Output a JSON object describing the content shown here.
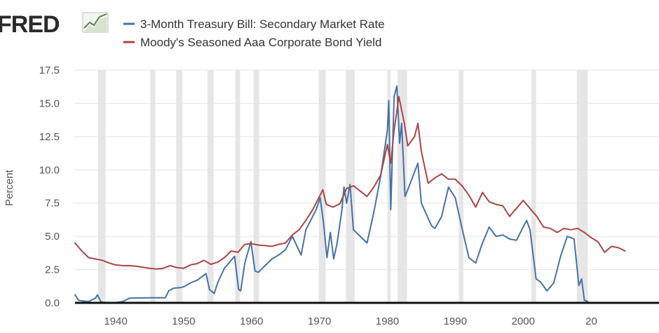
{
  "header": {
    "logo_text": "FRED"
  },
  "chart_data": {
    "type": "line",
    "ylabel": "Percent",
    "ylim": [
      0,
      17.5
    ],
    "xlim": [
      1934,
      2020
    ],
    "y_ticks": [
      "0.0",
      "2.5",
      "5.0",
      "7.5",
      "10.0",
      "12.5",
      "15.0",
      "17.5"
    ],
    "x_ticks": [
      "1940",
      "1950",
      "1960",
      "1970",
      "1980",
      "1990",
      "2000",
      "20"
    ],
    "grid": "horizontal",
    "recessions": [
      [
        1937.4,
        1938.5
      ],
      [
        1945.1,
        1945.8
      ],
      [
        1948.9,
        1949.8
      ],
      [
        1953.5,
        1954.4
      ],
      [
        1957.6,
        1958.3
      ],
      [
        1960.3,
        1961.1
      ],
      [
        1969.9,
        1970.9
      ],
      [
        1973.9,
        1975.2
      ],
      [
        1980.0,
        1980.5
      ],
      [
        1981.5,
        1982.9
      ],
      [
        1990.5,
        1991.2
      ],
      [
        2001.2,
        2001.9
      ],
      [
        2007.9,
        2009.5
      ]
    ],
    "series": [
      {
        "name": "3-Month Treasury Bill: Secondary Market Rate",
        "color": "#4572a7",
        "points": [
          [
            1934.0,
            0.6
          ],
          [
            1934.5,
            0.2
          ],
          [
            1935,
            0.15
          ],
          [
            1936,
            0.1
          ],
          [
            1937.0,
            0.35
          ],
          [
            1937.3,
            0.6
          ],
          [
            1937.8,
            0.1
          ],
          [
            1938,
            0.05
          ],
          [
            1939,
            0.02
          ],
          [
            1940,
            0.02
          ],
          [
            1941,
            0.1
          ],
          [
            1942,
            0.35
          ],
          [
            1943,
            0.37
          ],
          [
            1945,
            0.38
          ],
          [
            1947.3,
            0.38
          ],
          [
            1947.8,
            0.9
          ],
          [
            1948.5,
            1.1
          ],
          [
            1949.5,
            1.15
          ],
          [
            1950,
            1.2
          ],
          [
            1951,
            1.5
          ],
          [
            1952,
            1.7
          ],
          [
            1953.3,
            2.2
          ],
          [
            1953.8,
            1.0
          ],
          [
            1954.5,
            0.7
          ],
          [
            1955,
            1.5
          ],
          [
            1956,
            2.6
          ],
          [
            1957.5,
            3.5
          ],
          [
            1958.1,
            1.0
          ],
          [
            1958.4,
            0.9
          ],
          [
            1959.0,
            3.0
          ],
          [
            1959.9,
            4.6
          ],
          [
            1960.5,
            2.4
          ],
          [
            1961,
            2.3
          ],
          [
            1962,
            2.8
          ],
          [
            1963,
            3.3
          ],
          [
            1964,
            3.6
          ],
          [
            1965,
            4.0
          ],
          [
            1966,
            5.0
          ],
          [
            1967.3,
            3.6
          ],
          [
            1968,
            5.5
          ],
          [
            1969.5,
            7.0
          ],
          [
            1970.1,
            7.9
          ],
          [
            1970.6,
            6.0
          ],
          [
            1971.1,
            3.4
          ],
          [
            1971.6,
            5.3
          ],
          [
            1972.1,
            3.3
          ],
          [
            1972.6,
            4.5
          ],
          [
            1973.3,
            7.0
          ],
          [
            1973.6,
            8.7
          ],
          [
            1974.0,
            7.5
          ],
          [
            1974.5,
            8.9
          ],
          [
            1975.0,
            5.5
          ],
          [
            1976,
            5.0
          ],
          [
            1977,
            4.5
          ],
          [
            1978,
            6.8
          ],
          [
            1979,
            9.5
          ],
          [
            1980.0,
            13.0
          ],
          [
            1980.2,
            15.2
          ],
          [
            1980.5,
            7.0
          ],
          [
            1980.9,
            14.0
          ],
          [
            1981.0,
            15.5
          ],
          [
            1981.4,
            16.3
          ],
          [
            1981.8,
            12.0
          ],
          [
            1982.1,
            13.5
          ],
          [
            1982.6,
            8.0
          ],
          [
            1983,
            8.5
          ],
          [
            1984.5,
            10.5
          ],
          [
            1985,
            7.5
          ],
          [
            1986.5,
            5.8
          ],
          [
            1987,
            5.6
          ],
          [
            1988,
            6.5
          ],
          [
            1989,
            8.7
          ],
          [
            1990,
            7.9
          ],
          [
            1991,
            5.6
          ],
          [
            1992,
            3.4
          ],
          [
            1993,
            3.0
          ],
          [
            1994,
            4.5
          ],
          [
            1995,
            5.7
          ],
          [
            1996,
            5.0
          ],
          [
            1997,
            5.1
          ],
          [
            1998,
            4.8
          ],
          [
            1999,
            4.7
          ],
          [
            2000.5,
            6.2
          ],
          [
            2001.0,
            5.5
          ],
          [
            2001.9,
            1.8
          ],
          [
            2002.5,
            1.6
          ],
          [
            2003.5,
            0.9
          ],
          [
            2004.5,
            1.5
          ],
          [
            2005.5,
            3.5
          ],
          [
            2006.5,
            5.0
          ],
          [
            2007.5,
            4.8
          ],
          [
            2008.2,
            1.3
          ],
          [
            2008.6,
            1.8
          ],
          [
            2009.0,
            0.2
          ],
          [
            2009.5,
            0.1
          ]
        ]
      },
      {
        "name": "Moody's Seasoned Aaa Corporate Bond Yield",
        "color": "#aa4643",
        "points": [
          [
            1934.0,
            4.5
          ],
          [
            1935,
            3.9
          ],
          [
            1936,
            3.4
          ],
          [
            1937,
            3.3
          ],
          [
            1938,
            3.2
          ],
          [
            1939,
            3.0
          ],
          [
            1940,
            2.85
          ],
          [
            1941,
            2.8
          ],
          [
            1942,
            2.8
          ],
          [
            1943,
            2.75
          ],
          [
            1945,
            2.6
          ],
          [
            1946,
            2.55
          ],
          [
            1947,
            2.6
          ],
          [
            1948,
            2.8
          ],
          [
            1949,
            2.65
          ],
          [
            1950,
            2.6
          ],
          [
            1951,
            2.85
          ],
          [
            1952,
            2.95
          ],
          [
            1953,
            3.2
          ],
          [
            1954,
            2.9
          ],
          [
            1955,
            3.05
          ],
          [
            1956,
            3.4
          ],
          [
            1957,
            3.9
          ],
          [
            1958,
            3.8
          ],
          [
            1959,
            4.4
          ],
          [
            1960,
            4.45
          ],
          [
            1961,
            4.35
          ],
          [
            1962,
            4.3
          ],
          [
            1963,
            4.25
          ],
          [
            1964,
            4.4
          ],
          [
            1965,
            4.5
          ],
          [
            1966,
            5.1
          ],
          [
            1967,
            5.5
          ],
          [
            1968,
            6.2
          ],
          [
            1969,
            7.0
          ],
          [
            1970,
            8.0
          ],
          [
            1970.5,
            8.5
          ],
          [
            1971,
            7.4
          ],
          [
            1972,
            7.2
          ],
          [
            1973,
            7.45
          ],
          [
            1974,
            8.6
          ],
          [
            1975,
            8.8
          ],
          [
            1976,
            8.4
          ],
          [
            1977,
            8.0
          ],
          [
            1978,
            8.7
          ],
          [
            1979,
            9.6
          ],
          [
            1980,
            11.9
          ],
          [
            1980.5,
            10.5
          ],
          [
            1981,
            13.0
          ],
          [
            1981.7,
            15.5
          ],
          [
            1982.5,
            13.5
          ],
          [
            1983,
            11.8
          ],
          [
            1984,
            12.5
          ],
          [
            1984.5,
            13.5
          ],
          [
            1985,
            11.4
          ],
          [
            1986,
            9.0
          ],
          [
            1987,
            9.4
          ],
          [
            1988,
            9.7
          ],
          [
            1989,
            9.3
          ],
          [
            1990,
            9.3
          ],
          [
            1991,
            8.8
          ],
          [
            1992,
            8.1
          ],
          [
            1993,
            7.2
          ],
          [
            1994,
            8.3
          ],
          [
            1995,
            7.6
          ],
          [
            1996,
            7.4
          ],
          [
            1997,
            7.3
          ],
          [
            1998,
            6.5
          ],
          [
            1999,
            7.1
          ],
          [
            2000,
            7.7
          ],
          [
            2001,
            7.1
          ],
          [
            2002,
            6.5
          ],
          [
            2003,
            5.7
          ],
          [
            2004,
            5.6
          ],
          [
            2005,
            5.3
          ],
          [
            2006,
            5.6
          ],
          [
            2007,
            5.5
          ],
          [
            2008,
            5.6
          ],
          [
            2009,
            5.3
          ],
          [
            2010,
            4.9
          ],
          [
            2011,
            4.6
          ],
          [
            2012,
            3.8
          ],
          [
            2013,
            4.25
          ],
          [
            2014,
            4.15
          ],
          [
            2015,
            3.9
          ]
        ]
      }
    ]
  }
}
